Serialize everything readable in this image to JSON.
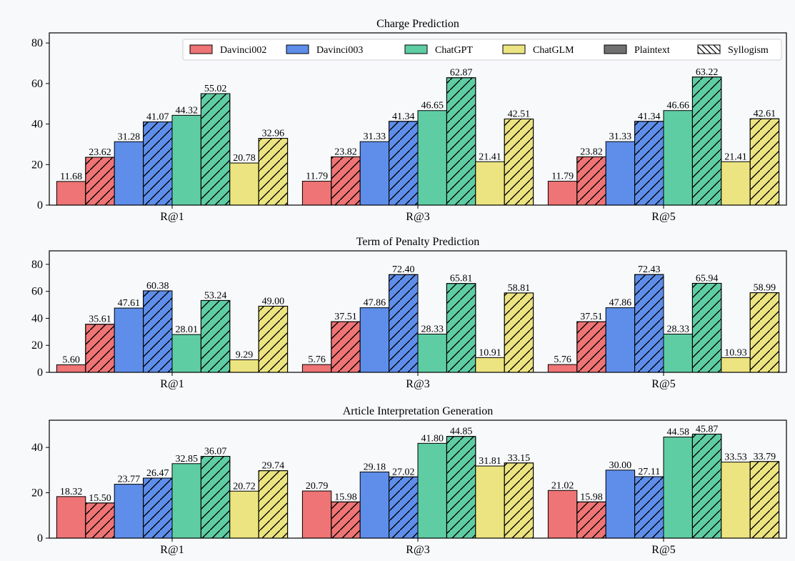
{
  "colors": {
    "Davinci002": "#ee7475",
    "Davinci003": "#5e8eea",
    "ChatGPT": "#5fcda4",
    "ChatGLM": "#ece480",
    "Plaintext": "#707070"
  },
  "legend": {
    "placement": "top-right, inside first panel",
    "items": [
      {
        "label": "Davinci002",
        "style": "Davinci002"
      },
      {
        "label": "Davinci003",
        "style": "Davinci003"
      },
      {
        "label": "ChatGPT",
        "style": "ChatGPT"
      },
      {
        "label": "ChatGLM",
        "style": "ChatGLM"
      },
      {
        "label": "Plaintext",
        "style": "Plaintext"
      },
      {
        "label": "Syllogism",
        "style": "hatch"
      }
    ]
  },
  "chart_data": [
    {
      "type": "bar",
      "title": "Charge Prediction",
      "categories": [
        "R@1",
        "R@3",
        "R@5"
      ],
      "ylim": [
        0,
        85
      ],
      "yticks": [
        0,
        20,
        40,
        60,
        80
      ],
      "series": [
        {
          "name": "Davinci002 Plaintext",
          "model": "Davinci002",
          "hatch": false,
          "values": [
            11.68,
            11.79,
            11.79
          ]
        },
        {
          "name": "Davinci002 Syllogism",
          "model": "Davinci002",
          "hatch": true,
          "values": [
            23.62,
            23.82,
            23.82
          ]
        },
        {
          "name": "Davinci003 Plaintext",
          "model": "Davinci003",
          "hatch": false,
          "values": [
            31.28,
            31.33,
            31.33
          ]
        },
        {
          "name": "Davinci003 Syllogism",
          "model": "Davinci003",
          "hatch": true,
          "values": [
            41.07,
            41.34,
            41.34
          ]
        },
        {
          "name": "ChatGPT Plaintext",
          "model": "ChatGPT",
          "hatch": false,
          "values": [
            44.32,
            46.65,
            46.66
          ]
        },
        {
          "name": "ChatGPT Syllogism",
          "model": "ChatGPT",
          "hatch": true,
          "values": [
            55.02,
            62.87,
            63.22
          ]
        },
        {
          "name": "ChatGLM Plaintext",
          "model": "ChatGLM",
          "hatch": false,
          "values": [
            20.78,
            21.41,
            21.41
          ]
        },
        {
          "name": "ChatGLM Syllogism",
          "model": "ChatGLM",
          "hatch": true,
          "values": [
            32.96,
            42.51,
            42.61
          ]
        }
      ]
    },
    {
      "type": "bar",
      "title": "Term of Penalty Prediction",
      "categories": [
        "R@1",
        "R@3",
        "R@5"
      ],
      "ylim": [
        0,
        90
      ],
      "yticks": [
        0,
        20,
        40,
        60,
        80
      ],
      "series": [
        {
          "name": "Davinci002 Plaintext",
          "model": "Davinci002",
          "hatch": false,
          "values": [
            5.6,
            5.76,
            5.76
          ]
        },
        {
          "name": "Davinci002 Syllogism",
          "model": "Davinci002",
          "hatch": true,
          "values": [
            35.61,
            37.51,
            37.51
          ]
        },
        {
          "name": "Davinci003 Plaintext",
          "model": "Davinci003",
          "hatch": false,
          "values": [
            47.61,
            47.86,
            47.86
          ]
        },
        {
          "name": "Davinci003 Syllogism",
          "model": "Davinci003",
          "hatch": true,
          "values": [
            60.38,
            72.4,
            72.43
          ]
        },
        {
          "name": "ChatGPT Plaintext",
          "model": "ChatGPT",
          "hatch": false,
          "values": [
            28.01,
            28.33,
            28.33
          ]
        },
        {
          "name": "ChatGPT Syllogism",
          "model": "ChatGPT",
          "hatch": true,
          "values": [
            53.24,
            65.81,
            65.94
          ]
        },
        {
          "name": "ChatGLM Plaintext",
          "model": "ChatGLM",
          "hatch": false,
          "values": [
            9.29,
            10.91,
            10.93
          ]
        },
        {
          "name": "ChatGLM Syllogism",
          "model": "ChatGLM",
          "hatch": true,
          "values": [
            49.0,
            58.81,
            58.99
          ]
        }
      ]
    },
    {
      "type": "bar",
      "title": "Article Interpretation Generation",
      "categories": [
        "R@1",
        "R@3",
        "R@5"
      ],
      "ylim": [
        0,
        52
      ],
      "yticks": [
        0,
        20,
        40
      ],
      "series": [
        {
          "name": "Davinci002 Plaintext",
          "model": "Davinci002",
          "hatch": false,
          "values": [
            18.32,
            20.79,
            21.02
          ]
        },
        {
          "name": "Davinci002 Syllogism",
          "model": "Davinci002",
          "hatch": true,
          "values": [
            15.5,
            15.98,
            15.98
          ]
        },
        {
          "name": "Davinci003 Plaintext",
          "model": "Davinci003",
          "hatch": false,
          "values": [
            23.77,
            29.18,
            30.0
          ]
        },
        {
          "name": "Davinci003 Syllogism",
          "model": "Davinci003",
          "hatch": true,
          "values": [
            26.47,
            27.02,
            27.11
          ]
        },
        {
          "name": "ChatGPT Plaintext",
          "model": "ChatGPT",
          "hatch": false,
          "values": [
            32.85,
            41.8,
            44.58
          ]
        },
        {
          "name": "ChatGPT Syllogism",
          "model": "ChatGPT",
          "hatch": true,
          "values": [
            36.07,
            44.85,
            45.87
          ]
        },
        {
          "name": "ChatGLM Plaintext",
          "model": "ChatGLM",
          "hatch": false,
          "values": [
            20.72,
            31.81,
            33.53
          ]
        },
        {
          "name": "ChatGLM Syllogism",
          "model": "ChatGLM",
          "hatch": true,
          "values": [
            29.74,
            33.15,
            33.79
          ]
        }
      ]
    }
  ]
}
